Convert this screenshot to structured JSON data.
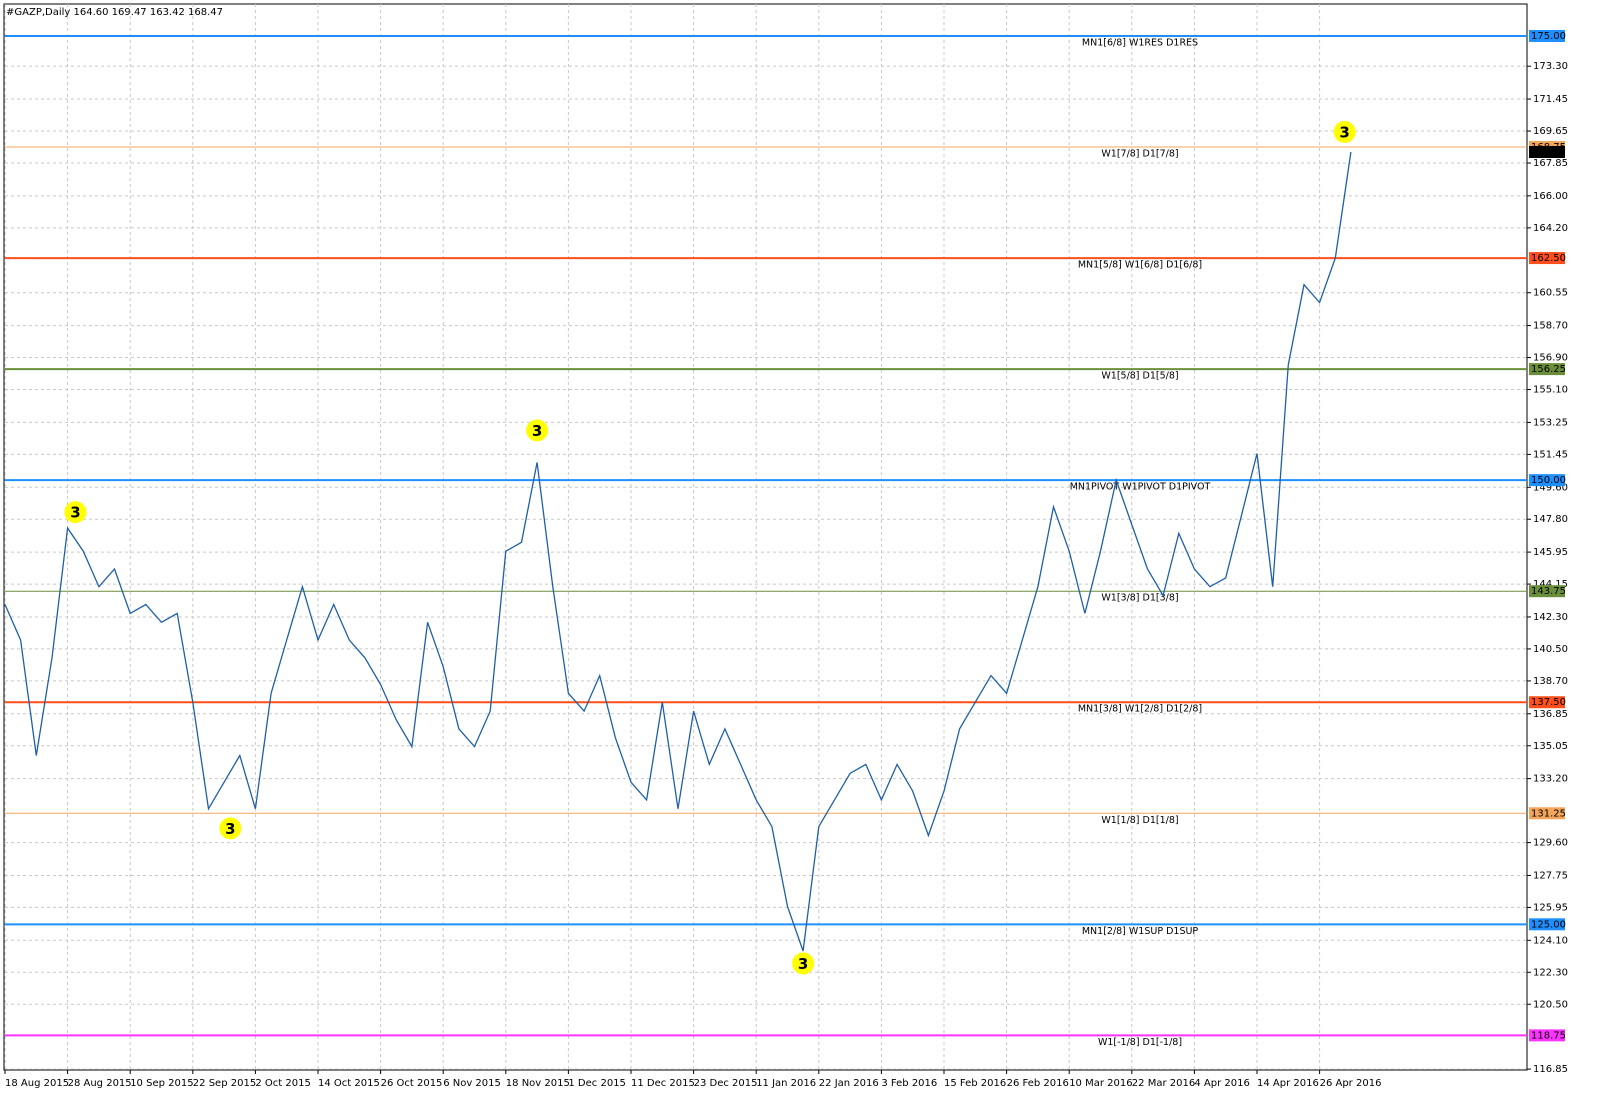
{
  "chart_data": {
    "type": "line",
    "title": "#GAZP,Daily  164.60 169.47 163.42 168.47",
    "categories": [
      "18 Aug 2015",
      null,
      null,
      null,
      "28 Aug 2015",
      null,
      null,
      null,
      "10 Sep 2015",
      null,
      null,
      null,
      "22 Sep 2015",
      null,
      null,
      null,
      "2 Oct 2015",
      null,
      null,
      null,
      "14 Oct 2015",
      null,
      null,
      null,
      "26 Oct 2015",
      null,
      null,
      null,
      "6 Nov 2015",
      null,
      null,
      null,
      "18 Nov 2015",
      null,
      null,
      null,
      "1 Dec 2015",
      null,
      null,
      null,
      "11 Dec 2015",
      null,
      null,
      null,
      "23 Dec 2015",
      null,
      null,
      null,
      "11 Jan 2016",
      null,
      null,
      null,
      "22 Jan 2016",
      null,
      null,
      null,
      "3 Feb 2016",
      null,
      null,
      null,
      "15 Feb 2016",
      null,
      null,
      null,
      "26 Feb 2016",
      null,
      null,
      null,
      "10 Mar 2016",
      null,
      null,
      null,
      "22 Mar 2016",
      null,
      null,
      null,
      "4 Apr 2016",
      null,
      null,
      null,
      "14 Apr 2016",
      null,
      null,
      null,
      "26 Apr 2016",
      null,
      null
    ],
    "series": [
      {
        "name": "GAZP",
        "color": "#1f5fa8",
        "values": [
          143,
          141,
          134.5,
          140,
          147.3,
          146,
          144,
          145,
          142.5,
          143,
          142,
          142.5,
          137.5,
          131.5,
          133,
          134.5,
          131.5,
          138,
          141,
          144,
          141,
          143,
          141,
          140,
          138.5,
          136.5,
          135,
          142,
          139.5,
          136,
          135,
          137,
          146,
          146.5,
          151,
          144,
          138,
          137,
          139,
          135.5,
          133,
          132,
          137.5,
          131.5,
          137,
          134,
          136,
          134,
          132,
          130.5,
          126,
          123.5,
          130.5,
          132,
          133.5,
          134,
          132,
          134,
          132.5,
          130,
          132.5,
          136,
          137.5,
          139,
          138,
          141,
          144,
          148.5,
          146,
          142.5,
          146,
          150,
          147.5,
          145,
          143.5,
          147,
          145,
          144,
          144.5,
          148,
          151.5,
          144,
          156.5,
          161,
          160,
          162.5,
          168.47
        ]
      }
    ],
    "ylim": [
      116.8,
      176.8
    ],
    "yticks": [
      {
        "value": 173.3,
        "label": "173.30"
      },
      {
        "value": 171.45,
        "label": "171.45"
      },
      {
        "value": 169.65,
        "label": "169.65"
      },
      {
        "value": 167.85,
        "label": "167.85"
      },
      {
        "value": 166,
        "label": "166.00"
      },
      {
        "value": 164.2,
        "label": "164.20"
      },
      {
        "value": 160.55,
        "label": "160.55"
      },
      {
        "value": 158.7,
        "label": "158.70"
      },
      {
        "value": 156.9,
        "label": "156.90"
      },
      {
        "value": 155.1,
        "label": "155.10"
      },
      {
        "value": 153.25,
        "label": "153.25"
      },
      {
        "value": 151.45,
        "label": "151.45"
      },
      {
        "value": 149.6,
        "label": "149.60"
      },
      {
        "value": 147.8,
        "label": "147.80"
      },
      {
        "value": 145.95,
        "label": "145.95"
      },
      {
        "value": 144.15,
        "label": "144.15"
      },
      {
        "value": 142.3,
        "label": "142.30"
      },
      {
        "value": 140.5,
        "label": "140.50"
      },
      {
        "value": 138.7,
        "label": "138.70"
      },
      {
        "value": 136.85,
        "label": "136.85"
      },
      {
        "value": 135.05,
        "label": "135.05"
      },
      {
        "value": 133.2,
        "label": "133.20"
      },
      {
        "value": 129.6,
        "label": "129.60"
      },
      {
        "value": 127.75,
        "label": "127.75"
      },
      {
        "value": 125.95,
        "label": "125.95"
      },
      {
        "value": 124.1,
        "label": "124.10"
      },
      {
        "value": 122.3,
        "label": "122.30"
      },
      {
        "value": 120.5,
        "label": "120.50"
      },
      {
        "value": 116.85,
        "label": "116.85"
      }
    ],
    "grid": true,
    "levels": [
      {
        "value": 175,
        "label": "175.00",
        "name": "MN1[6/8] W1RES D1RES",
        "color": "#1e8fff"
      },
      {
        "value": 168.75,
        "label": "168.75",
        "name": "W1[7/8] D1[7/8]",
        "color": "#f5a55a"
      },
      {
        "value": 162.5,
        "label": "162.50",
        "name": "MN1[5/8] W1[6/8] D1[6/8]",
        "color": "#ff4f1a"
      },
      {
        "value": 156.25,
        "label": "156.25",
        "name": "W1[5/8] D1[5/8]",
        "color": "#6b8e3a"
      },
      {
        "value": 150,
        "label": "150.00",
        "name": "MN1PIVOT W1PIVOT D1PIVOT",
        "color": "#1e8fff"
      },
      {
        "value": 143.75,
        "label": "143.75",
        "name": "W1[3/8] D1[3/8]",
        "color": "#6b8e3a"
      },
      {
        "value": 137.5,
        "label": "137.50",
        "name": "MN1[3/8] W1[2/8] D1[2/8]",
        "color": "#ff4f1a"
      },
      {
        "value": 131.25,
        "label": "131.25",
        "name": "W1[1/8] D1[1/8]",
        "color": "#f5a55a"
      },
      {
        "value": 125,
        "label": "125.00",
        "name": "MN1[2/8] W1SUP D1SUP",
        "color": "#1e8fff"
      },
      {
        "value": 118.75,
        "label": "118.75",
        "name": "W1[-1/8] D1[-1/8]",
        "color": "#ff33ff"
      }
    ],
    "last_price": {
      "value": 168.47,
      "label": "168.47"
    },
    "annotations": [
      {
        "text": "3",
        "x": 4.5,
        "y": 148.2
      },
      {
        "text": "3",
        "x": 14.4,
        "y": 130.4
      },
      {
        "text": "3",
        "x": 34,
        "y": 152.8
      },
      {
        "text": "3",
        "x": 51,
        "y": 122.8
      },
      {
        "text": "3",
        "x": 85.6,
        "y": 169.6
      }
    ]
  }
}
